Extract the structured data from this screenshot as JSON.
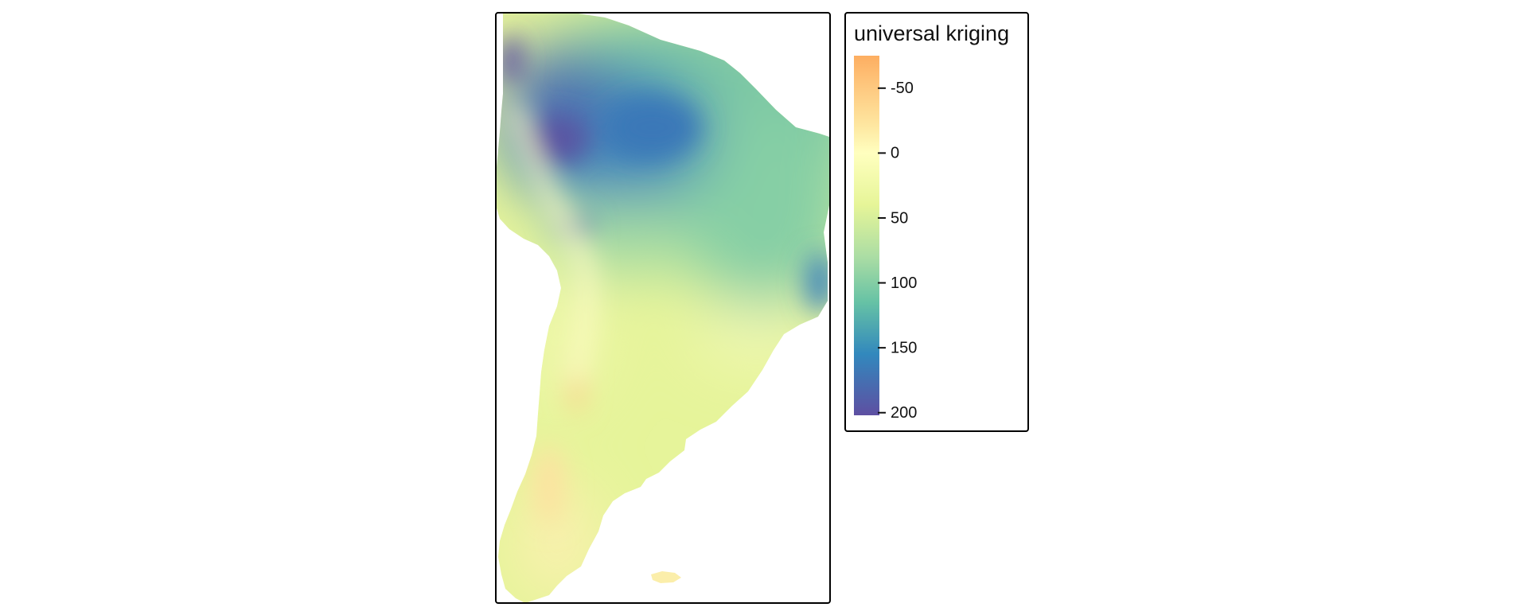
{
  "legend": {
    "title": "universal kriging",
    "value_range": [
      -75,
      202
    ],
    "ticks": [
      {
        "value": -50,
        "label": "-50"
      },
      {
        "value": 0,
        "label": "0"
      },
      {
        "value": 50,
        "label": "50"
      },
      {
        "value": 100,
        "label": "100"
      },
      {
        "value": 150,
        "label": "150"
      },
      {
        "value": 200,
        "label": "200"
      }
    ],
    "color_stops": [
      {
        "value": -75,
        "color": "#fdae61"
      },
      {
        "value": -50,
        "color": "#fec980"
      },
      {
        "value": -20,
        "color": "#fee8a2"
      },
      {
        "value": 0,
        "color": "#ffffbf"
      },
      {
        "value": 40,
        "color": "#e6f598"
      },
      {
        "value": 80,
        "color": "#abdda4"
      },
      {
        "value": 115,
        "color": "#66c2a5"
      },
      {
        "value": 155,
        "color": "#3288bd"
      },
      {
        "value": 202,
        "color": "#5e4fa2"
      }
    ]
  },
  "map": {
    "description_colors": {
      "land_low": "#e8f4a0",
      "land_mid": "#86cfa5",
      "land_high": "#3a7fbc",
      "land_peak": "#5b4fa0",
      "andes_negative": "#fde4a0"
    }
  }
}
